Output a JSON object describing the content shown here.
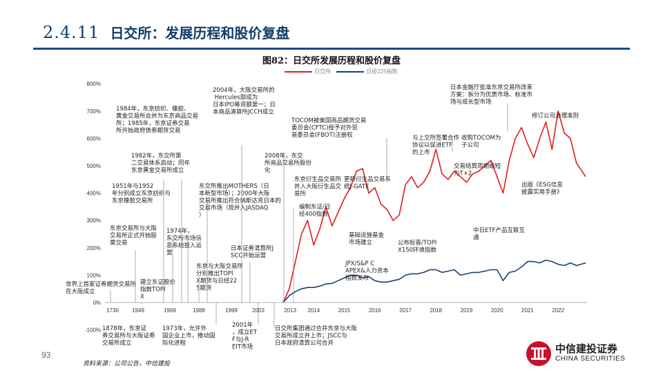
{
  "header": {
    "section_number": "2.4.11",
    "section_title": "日交所：发展历程和股价复盘"
  },
  "figure_title": "图82：日交所发展历程和股价复盘",
  "footer": {
    "page_number": "93",
    "source": "资料来源：公司公告，中信建投",
    "brand_cn": "中信建投证券",
    "brand_en": "CHINA SECURITIES"
  },
  "colors": {
    "jpx": "#e41a1c",
    "nikkei": "#17406d",
    "brand": "#c8102e",
    "title": "#123c69"
  },
  "chart_data": {
    "type": "line",
    "legend_position": "top",
    "series": [
      {
        "name": "日交所",
        "x": [
          2013.0,
          2013.2,
          2013.4,
          2013.6,
          2013.8,
          2014.0,
          2014.2,
          2014.4,
          2014.6,
          2014.8,
          2015.0,
          2015.2,
          2015.4,
          2015.6,
          2015.8,
          2016.0,
          2016.2,
          2016.4,
          2016.6,
          2016.8,
          2017.0,
          2017.2,
          2017.4,
          2017.6,
          2017.8,
          2018.0,
          2018.2,
          2018.4,
          2018.6,
          2018.8,
          2019.0,
          2019.2,
          2019.4,
          2019.6,
          2019.8,
          2020.0,
          2020.2,
          2020.4,
          2020.6,
          2020.8,
          2021.0,
          2021.2,
          2021.4,
          2021.6,
          2021.8,
          2022.0,
          2022.2,
          2022.4,
          2022.6,
          2022.9
        ],
        "values": [
          0,
          50,
          150,
          250,
          300,
          210,
          270,
          350,
          280,
          330,
          380,
          420,
          480,
          490,
          400,
          420,
          360,
          340,
          300,
          320,
          430,
          460,
          420,
          440,
          480,
          560,
          470,
          450,
          480,
          460,
          440,
          470,
          480,
          500,
          520,
          460,
          400,
          520,
          600,
          640,
          580,
          530,
          600,
          660,
          560,
          700,
          620,
          600,
          510,
          460
        ]
      },
      {
        "name": "日经225指数",
        "x": [
          2013.0,
          2013.2,
          2013.4,
          2013.6,
          2013.8,
          2014.0,
          2014.2,
          2014.4,
          2014.6,
          2014.8,
          2015.0,
          2015.2,
          2015.4,
          2015.6,
          2015.8,
          2016.0,
          2016.2,
          2016.4,
          2016.6,
          2016.8,
          2017.0,
          2017.2,
          2017.4,
          2017.6,
          2017.8,
          2018.0,
          2018.2,
          2018.4,
          2018.6,
          2018.8,
          2019.0,
          2019.2,
          2019.4,
          2019.6,
          2019.8,
          2020.0,
          2020.2,
          2020.4,
          2020.6,
          2020.8,
          2021.0,
          2021.2,
          2021.4,
          2021.6,
          2021.8,
          2022.0,
          2022.2,
          2022.4,
          2022.6,
          2022.9
        ],
        "values": [
          0,
          25,
          40,
          50,
          55,
          55,
          60,
          68,
          70,
          80,
          90,
          100,
          100,
          90,
          95,
          80,
          75,
          75,
          80,
          85,
          100,
          105,
          105,
          110,
          120,
          120,
          110,
          115,
          120,
          100,
          105,
          110,
          110,
          115,
          120,
          120,
          80,
          110,
          115,
          130,
          150,
          150,
          145,
          155,
          150,
          140,
          135,
          145,
          135,
          145
        ]
      }
    ],
    "ylim": [
      -100,
      800
    ],
    "y_ticks": [
      "-100%",
      "0%",
      "100%",
      "200%",
      "300%",
      "400%",
      "500%",
      "600%",
      "700%",
      "800%"
    ],
    "x_ticks_data": [
      2013,
      2014,
      2015,
      2016,
      2017,
      2018,
      2019,
      2020,
      2021,
      2022
    ],
    "x_ticks_history": [
      "1730",
      "1949",
      "1969",
      "1988",
      "1999",
      "2003"
    ],
    "grid": false,
    "annotations_above": [
      "1984年，东京纺织、橡胶、黄金交易所合并为东京商品交易所；1985年，东京证券交易所开始政府债券期货交易",
      "2004年，大阪交易所的 Hercules部成为日本IPO筹资额第一；日本商品清算所JCCH成立",
      "TOCOM被美国商品期货交易委员会(CFTC)授予对外贸易委员会(FBOT)注册权",
      "1982年，东交所第二交易体系启动；同年东京黄金交易所成立",
      "2008年，东交所商品交易所股份化",
      "1951年与1952年分别成立东京纺织与东京橡胶交易所",
      "东交所推出MOTHERS（日本新型市场）；2000年大阪交易所推出符合纳斯达克日本的交易市场（现并入JASDAQ）",
      "东京衍生品交易所并入大阪衍生品交易所",
      "更新衍生品交易系统J-GATE",
      "编制东证/日经400指数",
      "东京交易所与大阪交易所正式开始股票交易",
      "1974年，东交所市场信息系统投入运营",
      "日本证券清算所JSCC开始运营",
      "东京与大阪交易所分别推出TOPIX期货与日经225期货",
      "建立东证股价指数TOPIX",
      "世界上首家证券期货交易所在大阪成立",
      "日本金融厅批准东京交易所改革方案：拆分为优质市场、标准市场与成长型市场",
      "修订公司治理准则",
      "与上交所签署合作协议以促进ETF的上市",
      "收购TOCOM为子公司",
      "交易结算周期缩短为T+2",
      "JPX/S&P CAPEX&人力资本指数发布",
      "公布标普/TOPIX150环境指数",
      "基础设施基金市场建立",
      "出版《ESG信息披露实用手册》",
      "中日ETF产品互联互通"
    ],
    "annotations_below": [
      "1878年，东京证券交易所与大阪证券交易所成立",
      "1973年，允许外国企业上市，推动国际化进程",
      "2001年，成立ETF与J-REIT市场",
      "日交所集团通过合并东京与大阪交易所成立并上市；JSCC与日本政府清算公司合并"
    ]
  }
}
